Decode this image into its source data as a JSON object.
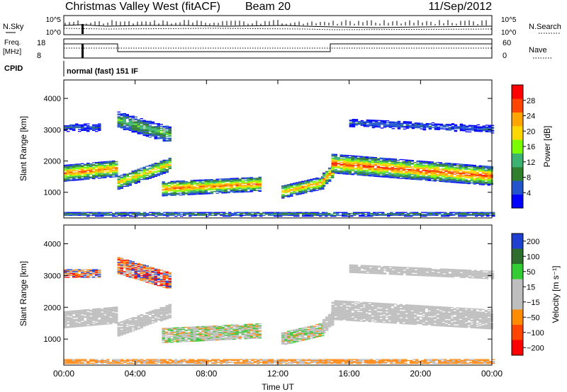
{
  "header": {
    "title": "Christmas Valley West (fitACF)",
    "beam": "Beam 20",
    "date": "11/Sep/2012"
  },
  "top_panels": {
    "nsky_label": "N.Sky",
    "nsearch_label": "N.Search",
    "nsky_ticks": [
      "10^5",
      "10^0"
    ],
    "nsearch_ticks": [
      "10^5",
      "10^0"
    ],
    "freq_label": "Freq.",
    "freq_unit": "[MHz]",
    "freq_ticks": [
      "18",
      "8"
    ],
    "nave_label": "Nave",
    "nave_ticks": [
      "60",
      "0"
    ],
    "cpid_label": "CPID",
    "cpid_text": "normal (fast) 151 IF"
  },
  "chart_data": [
    {
      "type": "heatmap",
      "name": "power-panel",
      "ylabel": "Slant Range [km]",
      "xlabel": "",
      "x_ticks": [
        "00:00",
        "04:00",
        "08:00",
        "12:00",
        "16:00",
        "20:00",
        "00:00"
      ],
      "x_range_hours": [
        0,
        24
      ],
      "y_ticks": [
        1000,
        2000,
        3000,
        4000
      ],
      "y_range_km": [
        180,
        4590
      ],
      "colorbar": {
        "label": "Power [dB]",
        "ticks": [
          4,
          8,
          12,
          16,
          20,
          24,
          28
        ],
        "range": [
          0,
          32
        ],
        "colors": [
          "#0000ff",
          "#2255cc",
          "#2f7f2f",
          "#3cb371",
          "#7cfc00",
          "#ffd700",
          "#ffa500",
          "#ff4500",
          "#ff0000"
        ]
      },
      "colors": {
        "low": "#1a33d6",
        "mid": "#3c9a3c",
        "high": "#ff2000"
      }
    },
    {
      "type": "heatmap",
      "name": "velocity-panel",
      "ylabel": "Slant Range [km]",
      "xlabel": "Time UT",
      "x_ticks": [
        "00:00",
        "04:00",
        "08:00",
        "12:00",
        "16:00",
        "20:00",
        "00:00"
      ],
      "x_range_hours": [
        0,
        24
      ],
      "y_ticks": [
        1000,
        2000,
        3000,
        4000
      ],
      "y_range_km": [
        180,
        4590
      ],
      "colorbar": {
        "label": "Velocity [m s⁻¹]",
        "ticks": [
          200,
          100,
          50,
          15,
          -15,
          -50,
          -100,
          -200
        ],
        "colors": [
          "#1f3fd0",
          "#2d6e2d",
          "#32cd32",
          "#bebebe",
          "#bebebe",
          "#ff8c00",
          "#ff4500",
          "#ff0000"
        ]
      },
      "colors": {
        "ground_scatter": "#bebebe",
        "positive": "#3cc83c",
        "negative": "#ff8c1a"
      }
    }
  ]
}
